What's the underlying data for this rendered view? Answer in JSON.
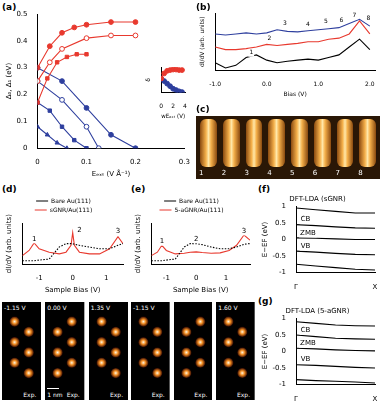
{
  "chart_data": [
    {
      "panel": "(a)",
      "type": "scatter",
      "x_label": "Eₑₓₜ (V Å⁻¹)",
      "y_label": "Δ₀, Δ₁ (eV)",
      "xlim": [
        0,
        0.3
      ],
      "xticks": [
        0,
        0.1,
        0.2,
        0.3
      ],
      "ylim": [
        0,
        0.5
      ],
      "yticks": [
        0,
        0.1,
        0.2,
        0.3,
        0.4,
        0.5
      ],
      "grid": false,
      "series": [
        {
          "color": "#e8392e",
          "marker": "circle",
          "line_style": "solid",
          "x": [
            0,
            0.025,
            0.05,
            0.075,
            0.1,
            0.15,
            0.2
          ],
          "values": [
            0.3,
            0.38,
            0.43,
            0.45,
            0.46,
            0.47,
            0.47
          ]
        },
        {
          "color": "#e8392e",
          "marker": "open_circle",
          "line_style": "solid",
          "x": [
            0,
            0.025,
            0.05,
            0.1,
            0.15,
            0.2
          ],
          "values": [
            0.25,
            0.32,
            0.37,
            0.41,
            0.42,
            0.42
          ]
        },
        {
          "color": "#e8392e",
          "marker": "square",
          "line_style": "solid",
          "x": [
            0,
            0.02,
            0.04,
            0.06,
            0.08,
            0.1
          ],
          "values": [
            0.17,
            0.26,
            0.32,
            0.34,
            0.35,
            0.35
          ]
        },
        {
          "color": "#2e3f9e",
          "marker": "circle",
          "line_style": "solid",
          "x": [
            0,
            0.05,
            0.1,
            0.15,
            0.2
          ],
          "values": [
            0.3,
            0.25,
            0.15,
            0.05,
            0
          ]
        },
        {
          "color": "#2e3f9e",
          "marker": "open_circle",
          "line_style": "solid",
          "x": [
            0,
            0.05,
            0.1,
            0.125
          ],
          "values": [
            0.25,
            0.18,
            0.08,
            0
          ]
        },
        {
          "color": "#2e3f9e",
          "marker": "square",
          "line_style": "solid",
          "x": [
            0,
            0.025,
            0.05,
            0.075,
            0.1
          ],
          "values": [
            0.17,
            0.14,
            0.08,
            0.03,
            0
          ]
        },
        {
          "color": "#2e3f9e",
          "marker": "triangle",
          "line_style": "solid",
          "x": [
            0,
            0.02,
            0.04,
            0.06
          ],
          "values": [
            0.08,
            0.05,
            0.02,
            0
          ]
        }
      ],
      "inset": {
        "type": "scatter",
        "x_label": "wEₑₓₜ (V)",
        "y_label": "δ",
        "xlim": [
          0,
          4
        ],
        "xticks": [
          0,
          2,
          4
        ],
        "ylim": [
          0,
          1
        ],
        "yticks": [],
        "tick_labels": "x",
        "grid": false,
        "x": [
          0,
          0.5,
          1,
          1.5,
          2,
          2.5,
          3,
          3.5
        ],
        "series": [
          {
            "color": "#e8392e",
            "marker": "circle",
            "line_style": "solid",
            "values": [
              0.55,
              0.75,
              0.85,
              0.88,
              0.9,
              0.9,
              0.88,
              0.88
            ]
          },
          {
            "color": "#2e3f9e",
            "marker": "circle",
            "line_style": "solid",
            "values": [
              0.55,
              0.45,
              0.35,
              0.25,
              0.15,
              0.1,
              0.05,
              0.02
            ]
          }
        ]
      }
    },
    {
      "panel": "(b)",
      "type": "line",
      "x_label": "Bias (V)",
      "y_label": "dI/dV (arb. units)",
      "xlim": [
        -1.0,
        2.1
      ],
      "xticks": [
        {
          "value": -1,
          "label": "-1.0"
        },
        {
          "value": 0,
          "label": "0.0"
        },
        {
          "value": 1,
          "label": "1.0"
        },
        {
          "value": 2,
          "label": "2.0"
        }
      ],
      "ylim": [
        0,
        1.1
      ],
      "yticks": [],
      "tick_labels": "x",
      "grid": false,
      "x": [
        -1.0,
        -0.8,
        -0.6,
        -0.4,
        -0.2,
        0,
        0.2,
        0.4,
        0.6,
        0.8,
        1.0,
        1.2,
        1.4,
        1.6,
        1.8,
        2.0
      ],
      "series": [
        {
          "color": "#000000",
          "marker": "none",
          "line_style": "solid",
          "values": [
            0.15,
            0.05,
            0.1,
            0.25,
            0.3,
            0.2,
            0.15,
            0.18,
            0.2,
            0.22,
            0.2,
            0.25,
            0.3,
            0.45,
            0.6,
            0.4
          ]
        },
        {
          "color": "#e8392e",
          "marker": "none",
          "line_style": "solid",
          "values": [
            0.45,
            0.4,
            0.4,
            0.42,
            0.45,
            0.5,
            0.48,
            0.5,
            0.52,
            0.55,
            0.55,
            0.6,
            0.62,
            0.7,
            0.95,
            0.7
          ]
        },
        {
          "color": "#2e3f9e",
          "marker": "none",
          "line_style": "solid",
          "values": [
            0.7,
            0.68,
            0.7,
            0.72,
            0.7,
            0.72,
            0.78,
            0.75,
            0.74,
            0.76,
            0.78,
            0.8,
            0.82,
            0.9,
            0.98,
            0.85
          ]
        }
      ],
      "annotations": [
        {
          "text": "1",
          "x": -0.3,
          "y": 0.34
        },
        {
          "text": "2",
          "x": 0.05,
          "y": 0.62
        },
        {
          "text": "3",
          "x": 0.35,
          "y": 0.9
        },
        {
          "text": "4",
          "x": 0.8,
          "y": 0.88
        },
        {
          "text": "5",
          "x": 1.15,
          "y": 0.93
        },
        {
          "text": "6",
          "x": 1.45,
          "y": 0.96
        },
        {
          "text": "7",
          "x": 1.7,
          "y": 1.05
        },
        {
          "text": "8",
          "x": 1.97,
          "y": 1.0
        }
      ]
    },
    {
      "panel": "(d)",
      "type": "line",
      "x_label": "Sample Bias (V)",
      "y_label": "dI/dV (arb. units)",
      "xlim": [
        -1.5,
        1.5
      ],
      "xticks": [
        -1,
        0,
        1
      ],
      "ylim": [
        0,
        1.2
      ],
      "yticks": [],
      "tick_labels": "x",
      "grid": false,
      "legend": "top",
      "x": [
        -1.5,
        -1.3,
        -1.15,
        -1.0,
        -0.7,
        -0.4,
        -0.2,
        -0.05,
        0,
        0.05,
        0.2,
        0.5,
        0.8,
        1.1,
        1.35,
        1.5
      ],
      "series": [
        {
          "name": "Bare Au(111)",
          "color": "#000000",
          "marker": "none",
          "line_style": "dotted",
          "values": [
            0.1,
            0.1,
            0.1,
            0.12,
            0.15,
            0.5,
            0.6,
            0.6,
            0.6,
            0.58,
            0.55,
            0.5,
            0.45,
            0.45,
            0.55,
            0.6
          ]
        },
        {
          "name": "sGNR/Au(111)",
          "color": "#e8392e",
          "marker": "none",
          "line_style": "solid",
          "values": [
            0.25,
            0.4,
            0.62,
            0.45,
            0.35,
            0.3,
            0.35,
            0.55,
            0.92,
            0.55,
            0.35,
            0.3,
            0.3,
            0.45,
            0.8,
            0.6
          ]
        }
      ],
      "annotations": [
        {
          "text": "1",
          "x": -1.15,
          "y": 0.74
        },
        {
          "text": "2",
          "x": 0.2,
          "y": 0.98
        },
        {
          "text": "3",
          "x": 1.35,
          "y": 0.95
        }
      ],
      "maps": [
        {
          "label": "-1.15 V",
          "tag": "Exp."
        },
        {
          "label": "0.00 V",
          "tag": "Exp.",
          "scale_bar": "1 nm"
        },
        {
          "label": "1.35 V",
          "tag": "Exp."
        }
      ]
    },
    {
      "panel": "(e)",
      "type": "line",
      "x_label": "Sample Bias (V)",
      "y_label": "dI/dV (arb. units)",
      "xlim": [
        -1.5,
        1.8
      ],
      "xticks": [
        -1,
        0,
        1
      ],
      "ylim": [
        0,
        1.2
      ],
      "yticks": [],
      "tick_labels": "x",
      "grid": false,
      "legend": "top",
      "x": [
        -1.5,
        -1.3,
        -1.15,
        -1.0,
        -0.7,
        -0.4,
        -0.2,
        0,
        0.2,
        0.5,
        0.8,
        1.1,
        1.35,
        1.6,
        1.8
      ],
      "series": [
        {
          "name": "Bare Au(111)",
          "color": "#000000",
          "marker": "none",
          "line_style": "dotted",
          "values": [
            0.1,
            0.1,
            0.1,
            0.12,
            0.15,
            0.5,
            0.6,
            0.6,
            0.57,
            0.5,
            0.45,
            0.45,
            0.5,
            0.58,
            0.6
          ]
        },
        {
          "name": "5-aGNR/Au(111)",
          "color": "#e8392e",
          "marker": "none",
          "line_style": "solid",
          "values": [
            0.25,
            0.35,
            0.55,
            0.4,
            0.3,
            0.32,
            0.35,
            0.36,
            0.34,
            0.32,
            0.33,
            0.4,
            0.55,
            0.85,
            0.7
          ]
        }
      ],
      "annotations": [
        {
          "text": "1",
          "x": -1.15,
          "y": 0.67
        },
        {
          "text": "2",
          "x": 0.0,
          "y": 0.74
        },
        {
          "text": "3",
          "x": 1.6,
          "y": 0.97
        }
      ],
      "maps": [
        {
          "label": "-1.15 V",
          "tag": "Exp."
        },
        {
          "tag": "Exp."
        },
        {
          "label": "1.60 V",
          "tag": "Exp."
        }
      ]
    },
    {
      "panel": "(f)",
      "type": "line",
      "title": "DFT-LDA (sGNR)",
      "y_label": "E−EF (eV)",
      "xlim": [
        0,
        1
      ],
      "xticks": [
        {
          "value": 0,
          "label": "Γ"
        },
        {
          "value": 1,
          "label": "X"
        }
      ],
      "ylim": [
        -1,
        1
      ],
      "yticks": [
        -1,
        -0.5,
        0,
        0.5,
        1
      ],
      "grid": false,
      "x": [
        0,
        0.25,
        0.5,
        0.75,
        1
      ],
      "series": [
        {
          "color": "#000000",
          "marker": "none",
          "line_style": "solid",
          "values": [
            0.95,
            0.9,
            0.85,
            0.8,
            0.8
          ]
        },
        {
          "color": "#000000",
          "marker": "none",
          "line_style": "solid",
          "values": [
            0.45,
            0.42,
            0.38,
            0.35,
            0.34
          ]
        },
        {
          "color": "#000000",
          "marker": "none",
          "line_style": "solid",
          "values": [
            0.05,
            0.04,
            0.02,
            0,
            0
          ]
        },
        {
          "color": "#000000",
          "marker": "none",
          "line_style": "solid",
          "values": [
            -0.35,
            -0.38,
            -0.42,
            -0.45,
            -0.46
          ]
        },
        {
          "color": "#000000",
          "marker": "none",
          "line_style": "solid",
          "values": [
            -0.75,
            -0.8,
            -0.85,
            -0.9,
            -0.92
          ]
        }
      ],
      "annotations": [
        {
          "text": "CB",
          "x": 0.12,
          "y": 0.6
        },
        {
          "text": "ZMB",
          "x": 0.15,
          "y": 0.2
        },
        {
          "text": "VB",
          "x": 0.12,
          "y": -0.2
        }
      ]
    },
    {
      "panel": "(g)",
      "type": "line",
      "title": "DFT-LDA (5-aGNR)",
      "y_label": "E−EF (eV)",
      "xlim": [
        0,
        1
      ],
      "xticks": [
        {
          "value": 0,
          "label": "Γ"
        },
        {
          "value": 1,
          "label": "X"
        }
      ],
      "ylim": [
        -1,
        1
      ],
      "yticks": [
        -1,
        -0.5,
        0,
        0.5,
        1
      ],
      "grid": false,
      "x": [
        0,
        0.25,
        0.5,
        0.75,
        1
      ],
      "series": [
        {
          "color": "#000000",
          "marker": "none",
          "line_style": "solid",
          "values": [
            0.9,
            0.85,
            0.8,
            0.78,
            0.77
          ]
        },
        {
          "color": "#000000",
          "marker": "none",
          "line_style": "solid",
          "values": [
            0.5,
            0.45,
            0.4,
            0.38,
            0.37
          ]
        },
        {
          "color": "#000000",
          "marker": "none",
          "line_style": "solid",
          "values": [
            0.1,
            0.08,
            0.05,
            0.03,
            0.02
          ]
        },
        {
          "color": "#000000",
          "marker": "none",
          "line_style": "solid",
          "values": [
            -0.4,
            -0.42,
            -0.45,
            -0.48,
            -0.5
          ]
        },
        {
          "color": "#000000",
          "marker": "none",
          "line_style": "solid",
          "values": [
            -0.85,
            -0.88,
            -0.9,
            -0.92,
            -0.95
          ]
        }
      ],
      "annotations": [
        {
          "text": "CB",
          "x": 0.12,
          "y": 0.64
        },
        {
          "text": "ZMB",
          "x": 0.15,
          "y": 0.25
        },
        {
          "text": "VB",
          "x": 0.12,
          "y": -0.23
        }
      ]
    }
  ],
  "images": {
    "panel": "(c)",
    "labels": [
      "1",
      "2",
      "3",
      "4",
      "5",
      "6",
      "7",
      "8"
    ]
  }
}
